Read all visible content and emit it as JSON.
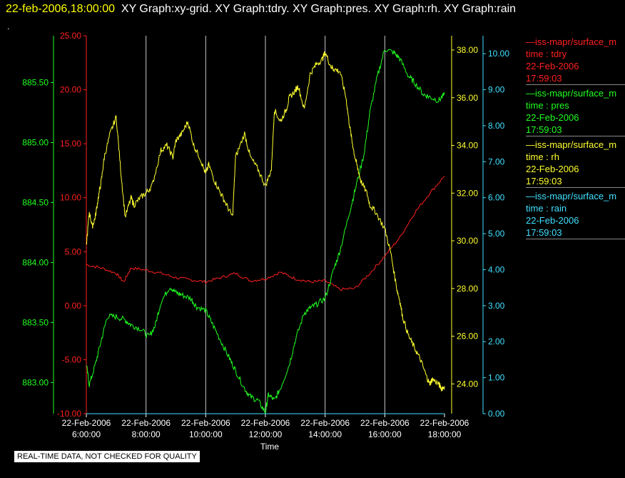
{
  "header": {
    "timestamp": "22-feb-2006,18:00:00",
    "graphs": "XY Graph:xy-grid.  XY Graph:tdry.  XY Graph:pres.  XY Graph:rh.  XY Graph:rain",
    "dot": "."
  },
  "notice": "REAL-TIME DATA, NOT CHECKED FOR QUALITY",
  "legend": [
    {
      "source": "—iss-mapr/surface_m",
      "var": "time : tdry",
      "date": "22-Feb-2006",
      "time": "17:59:03",
      "color": "#ff2020"
    },
    {
      "source": "—iss-mapr/surface_m",
      "var": "time : pres",
      "date": "22-Feb-2006",
      "time": "17:59:03",
      "color": "#20ff20"
    },
    {
      "source": "—iss-mapr/surface_m",
      "var": "time : rh",
      "date": "22-Feb-2006",
      "time": "17:59:03",
      "color": "#ffff30"
    },
    {
      "source": "—iss-mapr/surface_m",
      "var": "time : rain",
      "date": "22-Feb-2006",
      "time": "17:59:03",
      "color": "#40e0ff"
    }
  ],
  "chart_data": {
    "type": "line",
    "xlabel": "Time",
    "xticks": [
      {
        "d": "22-Feb-2006",
        "t": "6:00:00",
        "h": 6
      },
      {
        "d": "22-Feb-2006",
        "t": "8:00:00",
        "h": 8
      },
      {
        "d": "22-Feb-2006",
        "t": "10:00:00",
        "h": 10
      },
      {
        "d": "22-Feb-2006",
        "t": "12:00:00",
        "h": 12
      },
      {
        "d": "22-Feb-2006",
        "t": "14:00:00",
        "h": 14
      },
      {
        "d": "22-Feb-2006",
        "t": "16:00:00",
        "h": 16
      },
      {
        "d": "22-Feb-2006",
        "t": "18:00:00",
        "h": 18
      }
    ],
    "xlim": [
      6,
      18
    ],
    "grid": "vertical",
    "axes": {
      "tdry": {
        "ylim": [
          -10,
          25
        ],
        "ticks": [
          "25.00",
          "20.00",
          "15.00",
          "10.00",
          "5.00",
          "0.00",
          "-5.00",
          "-10.00"
        ],
        "color": "#ff2020"
      },
      "pres": {
        "ylim": [
          882.74,
          885.89
        ],
        "ticks": [
          "885.50",
          "885.00",
          "884.50",
          "884.00",
          "883.50",
          "883.00"
        ],
        "color": "#20ff20"
      },
      "rh": {
        "ylim": [
          22.75,
          38.6
        ],
        "ticks": [
          "38.00",
          "36.00",
          "34.00",
          "32.00",
          "30.00",
          "28.00",
          "26.00",
          "24.00"
        ],
        "color": "#ffff30"
      },
      "rain": {
        "ylim": [
          0,
          10.5
        ],
        "ticks": [
          "10.00",
          "9.00",
          "8.00",
          "7.00",
          "6.00",
          "5.00",
          "4.00",
          "3.00",
          "2.00",
          "1.00",
          "0.00"
        ],
        "color": "#40e0ff"
      }
    },
    "series": [
      {
        "name": "tdry",
        "axis": "tdry",
        "x": [
          6.0,
          6.5,
          7.0,
          7.25,
          7.5,
          8.0,
          8.5,
          9.0,
          9.5,
          10.0,
          10.5,
          11.0,
          11.5,
          12.0,
          12.5,
          13.0,
          13.5,
          14.0,
          14.5,
          15.0,
          15.5,
          16.0,
          16.5,
          17.0,
          17.5,
          18.0
        ],
        "y": [
          3.8,
          3.5,
          3.0,
          2.2,
          3.5,
          3.3,
          3.0,
          2.6,
          2.4,
          2.2,
          2.6,
          3.0,
          2.3,
          2.5,
          3.1,
          2.5,
          2.2,
          2.3,
          1.5,
          1.6,
          3.0,
          4.6,
          6.3,
          8.6,
          10.4,
          12.0
        ]
      },
      {
        "name": "pres",
        "axis": "pres",
        "x": [
          6.0,
          6.1,
          6.3,
          6.5,
          6.7,
          7.0,
          7.3,
          7.5,
          7.8,
          8.1,
          8.3,
          8.5,
          8.8,
          9.0,
          9.2,
          9.5,
          9.7,
          10.0,
          10.2,
          10.5,
          10.8,
          11.0,
          11.3,
          11.5,
          11.75,
          12.0,
          12.1,
          12.3,
          12.5,
          12.8,
          13.0,
          13.3,
          13.5,
          13.7,
          14.0,
          14.3,
          14.5,
          14.8,
          15.0,
          15.3,
          15.5,
          15.75,
          16.0,
          16.3,
          16.5,
          16.8,
          17.0,
          17.3,
          17.5,
          17.8,
          18.0
        ],
        "y": [
          883.15,
          882.98,
          883.15,
          883.35,
          883.55,
          883.55,
          883.52,
          883.48,
          883.45,
          883.38,
          883.47,
          883.67,
          883.8,
          883.75,
          883.73,
          883.7,
          883.63,
          883.6,
          883.5,
          883.35,
          883.2,
          883.1,
          882.95,
          882.88,
          882.85,
          882.75,
          882.9,
          882.85,
          882.95,
          883.15,
          883.35,
          883.58,
          883.62,
          883.65,
          883.7,
          883.95,
          884.1,
          884.4,
          884.6,
          884.9,
          885.25,
          885.55,
          885.78,
          885.75,
          885.7,
          885.55,
          885.5,
          885.4,
          885.38,
          885.35,
          885.4
        ]
      },
      {
        "name": "rh",
        "axis": "rh",
        "x": [
          6.0,
          6.1,
          6.2,
          6.3,
          6.4,
          6.5,
          6.6,
          6.8,
          7.0,
          7.15,
          7.3,
          7.5,
          7.6,
          7.8,
          8.0,
          8.2,
          8.5,
          8.7,
          8.9,
          9.0,
          9.2,
          9.4,
          9.6,
          9.8,
          10.0,
          10.1,
          10.3,
          10.5,
          10.7,
          10.9,
          11.0,
          11.3,
          11.5,
          11.75,
          12.0,
          12.2,
          12.3,
          12.5,
          12.7,
          12.8,
          13.0,
          13.1,
          13.3,
          13.5,
          13.7,
          13.9,
          14.0,
          14.2,
          14.3,
          14.5,
          14.7,
          14.8,
          14.9,
          15.0,
          15.1,
          15.2,
          15.4,
          15.5,
          15.7,
          16.0,
          16.2,
          16.4,
          16.5,
          16.6,
          16.8,
          17.0,
          17.2,
          17.4,
          17.5,
          17.6,
          17.8,
          17.9,
          18.0
        ],
        "y": [
          29.8,
          31.2,
          30.6,
          31.0,
          31.8,
          32.5,
          33.5,
          34.5,
          35.2,
          33.0,
          31.0,
          31.8,
          31.5,
          31.8,
          32.0,
          32.3,
          33.8,
          34.0,
          33.5,
          34.2,
          34.5,
          35.0,
          34.0,
          33.5,
          32.8,
          33.2,
          32.5,
          32.0,
          31.5,
          31.0,
          33.5,
          34.5,
          33.5,
          33.0,
          32.3,
          33.0,
          35.5,
          35.0,
          35.5,
          36.0,
          36.3,
          36.5,
          35.5,
          37.0,
          37.4,
          37.6,
          37.9,
          37.3,
          37.2,
          37.1,
          36.0,
          35.0,
          34.2,
          33.5,
          33.0,
          32.5,
          32.0,
          31.5,
          31.2,
          30.5,
          29.5,
          28.0,
          27.5,
          26.8,
          26.0,
          25.5,
          25.0,
          24.3,
          24.0,
          24.2,
          24.0,
          23.8,
          23.9
        ]
      },
      {
        "name": "rain",
        "axis": "rain",
        "x": [
          6.0,
          18.0
        ],
        "y": [
          0.0,
          0.0
        ]
      }
    ]
  }
}
